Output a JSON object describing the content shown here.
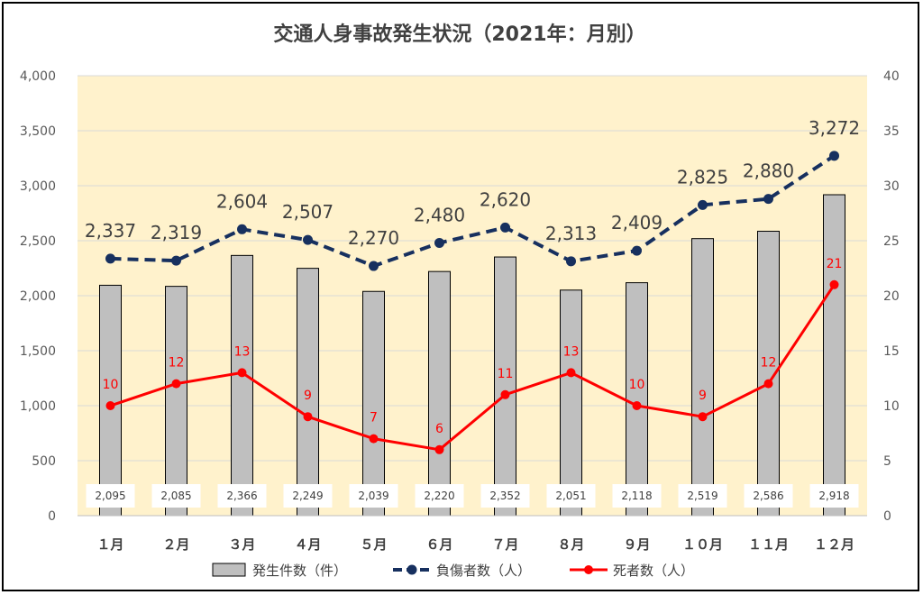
{
  "chart_data": {
    "type": "bar+line",
    "title": "交通人身事故発生状況（2021年：月別）",
    "categories": [
      "１月",
      "２月",
      "３月",
      "４月",
      "５月",
      "６月",
      "７月",
      "８月",
      "９月",
      "１０月",
      "１１月",
      "１２月"
    ],
    "series": [
      {
        "name": "発生件数（件）",
        "type": "bar",
        "axis": "left",
        "color": "#bfbfbf",
        "values": [
          2095,
          2085,
          2366,
          2249,
          2039,
          2220,
          2352,
          2051,
          2118,
          2519,
          2586,
          2918
        ],
        "labels": [
          "2,095",
          "2,085",
          "2,366",
          "2,249",
          "2,039",
          "2,220",
          "2,352",
          "2,051",
          "2,118",
          "2,519",
          "2,586",
          "2,918"
        ]
      },
      {
        "name": "負傷者数（人）",
        "type": "line",
        "style": "dashed",
        "axis": "left",
        "color": "#17305f",
        "values": [
          2337,
          2319,
          2604,
          2507,
          2270,
          2480,
          2620,
          2313,
          2409,
          2825,
          2880,
          3272
        ],
        "labels": [
          "2,337",
          "2,319",
          "2,604",
          "2,507",
          "2,270",
          "2,480",
          "2,620",
          "2,313",
          "2,409",
          "2,825",
          "2,880",
          "3,272"
        ]
      },
      {
        "name": "死者数（人）",
        "type": "line",
        "style": "solid",
        "axis": "right",
        "color": "#ff0000",
        "values": [
          10,
          12,
          13,
          9,
          7,
          6,
          11,
          13,
          10,
          9,
          12,
          21
        ],
        "labels": [
          "10",
          "12",
          "13",
          "9",
          "7",
          "6",
          "11",
          "13",
          "10",
          "9",
          "12",
          "21"
        ]
      }
    ],
    "y_left": {
      "range": [
        0,
        4000
      ],
      "ticks": [
        "0",
        "500",
        "1,000",
        "1,500",
        "2,000",
        "2,500",
        "3,000",
        "3,500",
        "4,000"
      ]
    },
    "y_right": {
      "range": [
        0,
        40
      ],
      "ticks": [
        "0",
        "5",
        "10",
        "15",
        "20",
        "25",
        "30",
        "35",
        "40"
      ]
    },
    "grid": true,
    "legend_position": "bottom",
    "plot_background": "#fff2cc"
  }
}
